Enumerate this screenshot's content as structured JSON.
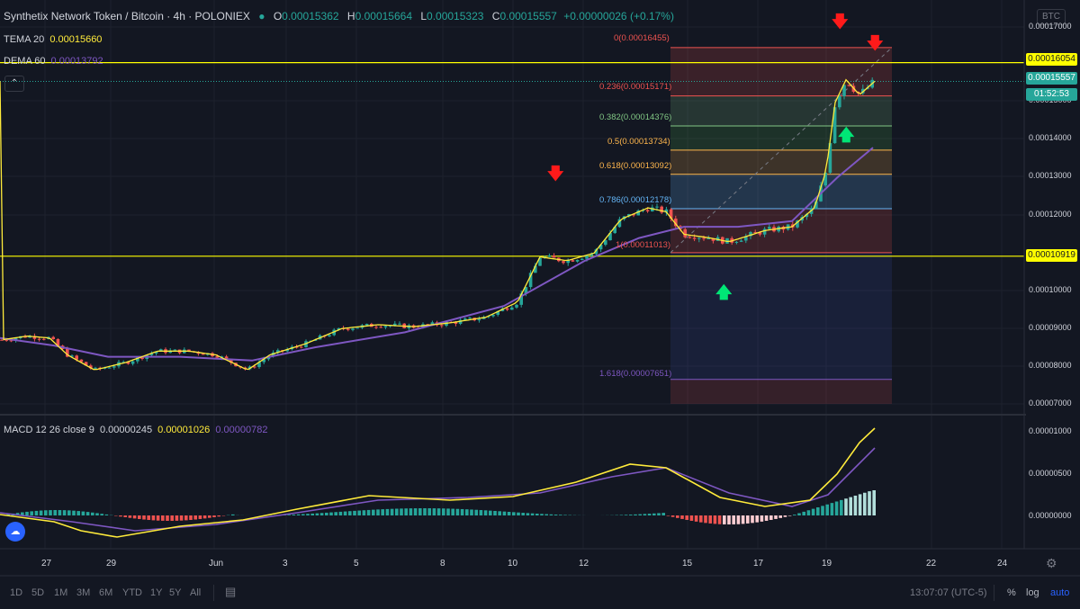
{
  "header": {
    "symbol_title": "Synthetix Network Token / Bitcoin · 4h · POLONIEX",
    "ohlc": {
      "open_label": "O",
      "open": "0.00015362",
      "high_label": "H",
      "high": "0.00015664",
      "low_label": "L",
      "low": "0.00015323",
      "close_label": "C",
      "close": "0.00015557",
      "change": "+0.00000026 (+0.17%)"
    },
    "currency_badge": "BTC"
  },
  "indicators": {
    "tema": {
      "label": "TEMA 20",
      "value": "0.00015660"
    },
    "dema": {
      "label": "DEMA 60",
      "value": "0.00013792"
    },
    "macd": {
      "label": "MACD 12 26 close 9",
      "v1": "0.00000245",
      "v2": "0.00001026",
      "v3": "0.00000782"
    }
  },
  "price_axis": {
    "labels": [
      "0.00017000",
      "0.00015000",
      "0.00014000",
      "0.00013000",
      "0.00012000",
      "0.00010000",
      "0.00009000",
      "0.00008000",
      "0.00007000"
    ],
    "tag_hline_top": "0.00016054",
    "tag_last": "0.00015557",
    "tag_countdown": "01:52:53",
    "tag_hline_bottom": "0.00010919"
  },
  "macd_axis": {
    "labels": [
      "0.00001000",
      "0.00000500",
      "0.00000000"
    ]
  },
  "fib_levels": [
    {
      "label": "0(0.00016455)",
      "color": "#ef5350"
    },
    {
      "label": "0.236(0.00015171)",
      "color": "#ef5350"
    },
    {
      "label": "0.382(0.00014376)",
      "color": "#81c784"
    },
    {
      "label": "0.5(0.00013734)",
      "color": "#ffb74d"
    },
    {
      "label": "0.618(0.00013092)",
      "color": "#ffb74d"
    },
    {
      "label": "0.786(0.00012178)",
      "color": "#64b5f6"
    },
    {
      "label": "1(0.00011013)",
      "color": "#ef5350"
    },
    {
      "label": "1.618(0.00007651)",
      "color": "#7e57c2"
    }
  ],
  "time_axis": [
    "27",
    "29",
    "Jun",
    "3",
    "5",
    "8",
    "10",
    "12",
    "15",
    "17",
    "19",
    "22",
    "24"
  ],
  "bottom_bar": {
    "timeframes": [
      "1D",
      "5D",
      "1M",
      "3M",
      "6M",
      "YTD",
      "1Y",
      "5Y",
      "All"
    ],
    "clock": "13:07:07 (UTC-5)",
    "percent": "%",
    "log": "log",
    "auto": "auto"
  },
  "colors": {
    "background": "#131722",
    "up": "#26a69a",
    "down": "#ef5350",
    "tema": "#ffeb3b",
    "dema": "#7e57c2",
    "hline": "#ffff00",
    "arrow_down": "#ff1a1a",
    "arrow_up": "#00e676"
  }
}
